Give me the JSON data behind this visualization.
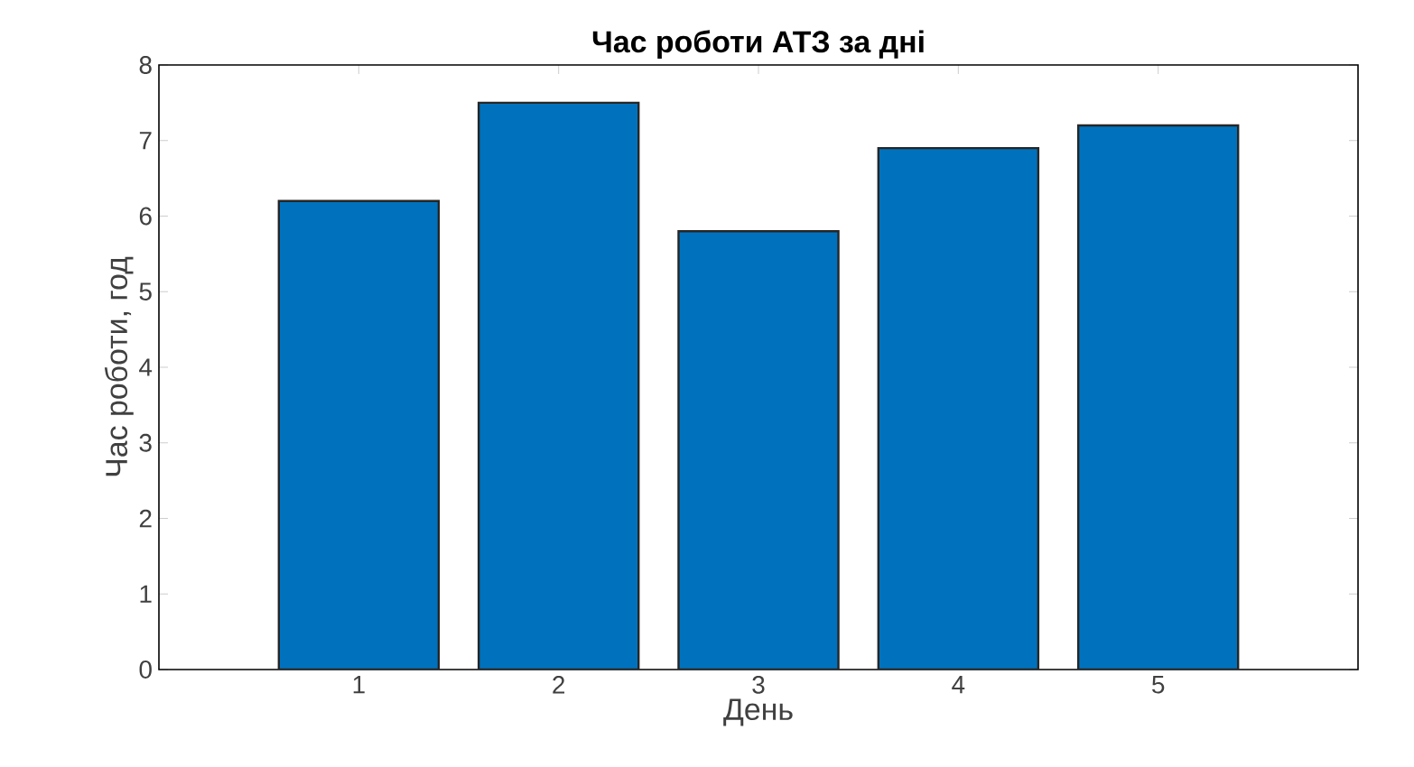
{
  "chart_data": {
    "type": "bar",
    "title": "Час роботи АТЗ за дні",
    "xlabel": "День",
    "ylabel": "Час роботи, год",
    "categories": [
      "1",
      "2",
      "3",
      "4",
      "5"
    ],
    "values": [
      6.2,
      7.5,
      5.8,
      6.9,
      7.2
    ],
    "color": "#0072bd",
    "ylim": [
      0,
      8
    ],
    "yticks": [
      0,
      1,
      2,
      3,
      4,
      5,
      6,
      7,
      8
    ]
  }
}
